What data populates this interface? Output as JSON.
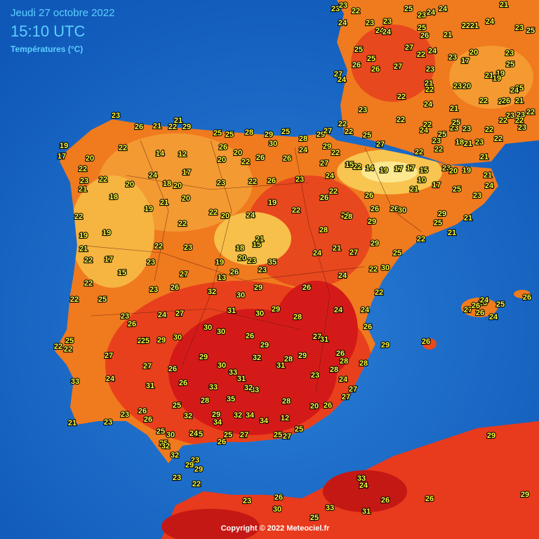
{
  "header": {
    "date": "Jeudi 27 octobre 2022",
    "time": "15:10 UTC",
    "subtitle": "Températures (°C)"
  },
  "footer": "Copyright © 2022 Meteociel.fr",
  "readings": [
    23,
    26,
    21,
    22,
    29,
    21,
    25,
    25,
    28,
    29,
    25,
    28,
    29,
    27,
    19,
    17,
    20,
    22,
    22,
    22,
    14,
    12,
    17,
    24,
    18,
    20,
    20,
    18,
    23,
    21,
    22,
    19,
    21,
    20,
    26,
    20,
    22,
    20,
    26,
    30,
    26,
    24,
    29,
    22,
    27,
    23,
    26,
    22,
    23,
    22,
    20,
    24,
    19,
    22,
    22,
    26,
    24,
    22,
    23,
    22,
    27,
    22,
    22,
    23,
    20,
    19,
    21,
    21,
    24,
    23,
    25,
    17,
    10,
    21,
    17,
    19,
    14,
    22,
    15,
    17,
    15,
    26,
    26,
    26,
    30,
    29,
    22,
    28,
    28,
    24,
    21,
    27,
    29,
    25,
    22,
    29,
    25,
    21,
    21,
    19,
    19,
    21,
    22,
    17,
    15,
    23,
    22,
    23,
    22,
    18,
    15,
    21,
    19,
    20,
    23,
    35,
    23,
    26,
    13,
    27,
    26,
    23,
    22,
    22,
    25,
    23,
    26,
    24,
    27,
    32,
    30,
    29,
    26,
    24,
    22,
    22,
    30,
    30,
    30,
    26,
    31,
    30,
    29,
    28,
    24,
    24,
    26,
    29,
    27,
    31,
    29,
    32,
    31,
    28,
    29,
    26,
    28,
    28,
    28,
    23,
    24,
    27,
    27,
    26,
    20,
    22,
    22,
    25,
    27,
    27,
    25,
    29,
    30,
    29,
    30,
    33,
    31,
    33,
    32,
    33,
    35,
    28,
    26,
    26,
    27,
    24,
    31,
    28,
    12,
    34,
    34,
    32,
    29,
    34,
    32,
    25,
    25,
    26,
    26,
    23,
    23,
    21,
    33,
    30,
    25,
    24,
    25,
    27,
    25,
    27,
    25,
    26,
    25,
    32,
    32,
    23,
    29,
    29,
    23,
    22,
    23,
    26,
    30,
    33,
    25,
    31,
    26,
    26,
    29,
    29,
    33,
    24,
    26,
    26,
    25,
    24,
    26,
    27,
    26,
    26,
    24,
    23,
    23,
    22,
    24,
    23,
    24,
    24,
    23,
    25,
    23,
    24,
    24,
    25,
    26,
    21,
    22,
    21,
    24,
    21,
    23,
    25,
    25,
    25,
    26,
    26,
    27,
    27,
    22,
    24,
    23,
    23,
    17,
    20,
    23,
    21,
    19,
    19,
    25,
    25,
    24,
    27,
    24,
    22,
    21,
    22,
    23,
    20,
    22,
    25,
    26,
    21,
    24,
    21,
    23,
    22,
    23,
    22,
    23,
    22,
    22,
    22,
    23,
    21,
    18,
    23,
    25,
    23,
    22,
    24,
    25,
    23,
    22,
    25
  ]
}
